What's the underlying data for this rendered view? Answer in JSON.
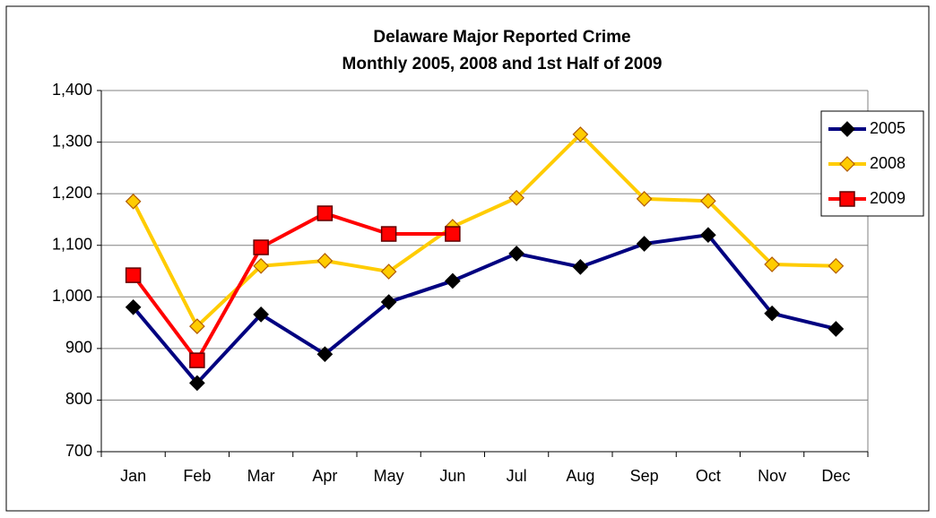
{
  "chart_data": {
    "type": "line",
    "title": "Delaware Major Reported Crime",
    "subtitle": "Monthly 2005, 2008 and 1st Half of 2009",
    "categories": [
      "Jan",
      "Feb",
      "Mar",
      "Apr",
      "May",
      "Jun",
      "Jul",
      "Aug",
      "Sep",
      "Oct",
      "Nov",
      "Dec"
    ],
    "series": [
      {
        "name": "2005",
        "color": "#000080",
        "marker": "diamond",
        "marker_fill": "#000000",
        "marker_stroke": "#000000",
        "values": [
          980,
          833,
          966,
          889,
          990,
          1031,
          1084,
          1058,
          1103,
          1120,
          968,
          938
        ]
      },
      {
        "name": "2008",
        "color": "#ffcc00",
        "marker": "diamond",
        "marker_fill": "#ffcc00",
        "marker_stroke": "#b05a00",
        "values": [
          1185,
          943,
          1060,
          1070,
          1049,
          1136,
          1192,
          1315,
          1190,
          1186,
          1063,
          1060
        ]
      },
      {
        "name": "2009",
        "color": "#ff0000",
        "marker": "square",
        "marker_fill": "#ff0000",
        "marker_stroke": "#600000",
        "values": [
          1042,
          877,
          1096,
          1162,
          1122,
          1122,
          null,
          null,
          null,
          null,
          null,
          null
        ]
      }
    ],
    "ylim": [
      700,
      1400
    ],
    "yticks": [
      700,
      800,
      900,
      {
        "value": 1000,
        "label": "1,000"
      },
      {
        "value": 1100,
        "label": "1,100"
      },
      {
        "value": 1200,
        "label": "1,200"
      },
      {
        "value": 1300,
        "label": "1,300"
      },
      {
        "value": 1400,
        "label": "1,400"
      }
    ],
    "grid": true,
    "legend": "top-right"
  }
}
